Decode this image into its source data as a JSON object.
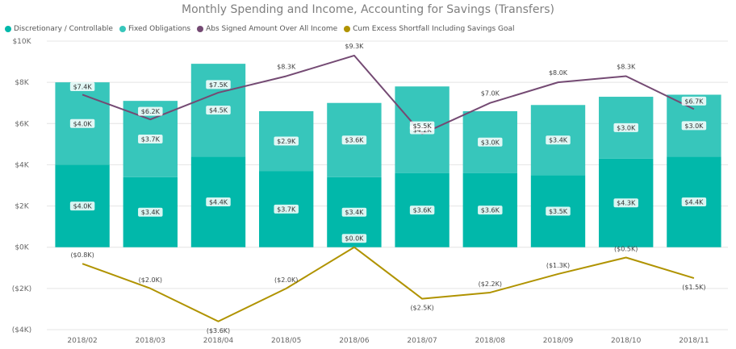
{
  "title": "Monthly Spending and Income, Accounting for Savings (Transfers)",
  "legend": [
    {
      "label": "Discretionary / Controllable",
      "color": "#01b8aa"
    },
    {
      "label": "Fixed Obligations",
      "color": "#37c6bb"
    },
    {
      "label": "Abs Signed Amount Over All Income",
      "color": "#744a73"
    },
    {
      "label": "Cum Excess Shortfall Including Savings Goal",
      "color": "#b09300"
    }
  ],
  "chart_data": {
    "type": "bar",
    "title": "Monthly Spending and Income, Accounting for Savings (Transfers)",
    "categories": [
      "2018/02",
      "2018/03",
      "2018/04",
      "2018/05",
      "2018/06",
      "2018/07",
      "2018/08",
      "2018/09",
      "2018/10",
      "2018/11"
    ],
    "ylim": [
      -4,
      10
    ],
    "yticks": [
      -4,
      -2,
      0,
      2,
      4,
      6,
      8,
      10
    ],
    "ytick_labels": [
      "($4K)",
      "($2K)",
      "$0K",
      "$2K",
      "$4K",
      "$6K",
      "$8K",
      "$10K"
    ],
    "grid": true,
    "legend_position": "top-left",
    "series": [
      {
        "name": "Discretionary / Controllable",
        "kind": "bar",
        "color": "#01b8aa",
        "values": [
          4.0,
          3.4,
          4.4,
          3.7,
          3.4,
          3.6,
          3.6,
          3.5,
          4.3,
          4.4
        ],
        "labels": [
          "$4.0K",
          "$3.4K",
          "$4.4K",
          "$3.7K",
          "$3.4K",
          "$3.6K",
          "$3.6K",
          "$3.5K",
          "$4.3K",
          "$4.4K"
        ]
      },
      {
        "name": "Fixed Obligations",
        "kind": "bar",
        "color": "#37c6bb",
        "values": [
          4.0,
          3.7,
          4.5,
          2.9,
          3.6,
          4.2,
          3.0,
          3.4,
          3.0,
          3.0
        ],
        "labels": [
          "$4.0K",
          "$3.7K",
          "$4.5K",
          "$2.9K",
          "$3.6K",
          "$4.2K",
          "$3.0K",
          "$3.4K",
          "$3.0K",
          "$3.0K"
        ]
      },
      {
        "name": "Abs Signed Amount Over All Income",
        "kind": "line",
        "color": "#744a73",
        "values": [
          7.4,
          6.2,
          7.5,
          8.3,
          9.3,
          5.5,
          7.0,
          8.0,
          8.3,
          6.7
        ],
        "labels": [
          "$7.4K",
          "$6.2K",
          "$7.5K",
          "$8.3K",
          "$9.3K",
          "$5.5K",
          "$7.0K",
          "$8.0K",
          "$8.3K",
          "$6.7K"
        ]
      },
      {
        "name": "Cum Excess Shortfall Including Savings Goal",
        "kind": "line",
        "color": "#b09300",
        "values": [
          -0.8,
          -2.0,
          -3.6,
          -2.0,
          0.0,
          -2.5,
          -2.2,
          -1.3,
          -0.5,
          -1.5
        ],
        "labels": [
          "($0.8K)",
          "($2.0K)",
          "($3.6K)",
          "($2.0K)",
          "$0.0K",
          "($2.5K)",
          "($2.2K)",
          "($1.3K)",
          "($0.5K)",
          "($1.5K)"
        ]
      }
    ]
  }
}
